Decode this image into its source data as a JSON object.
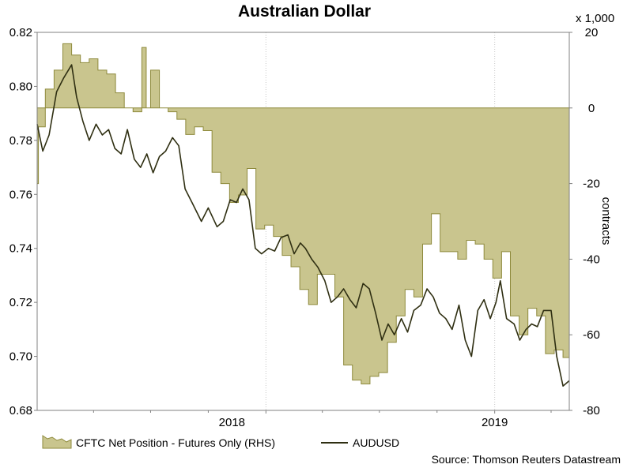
{
  "chart_data": {
    "type": "line",
    "title": "Australian Dollar",
    "ylabel": "",
    "y2label": "contracts",
    "y2_multiplier_label": "x 1,000",
    "ylim": [
      0.68,
      0.82
    ],
    "y2lim": [
      -80,
      20
    ],
    "yticks": [
      "0.82",
      "0.80",
      "0.78",
      "0.76",
      "0.74",
      "0.72",
      "0.70",
      "0.68"
    ],
    "y2ticks": [
      "20",
      "0",
      "-20",
      "-40",
      "-60",
      "-80"
    ],
    "xlim": [
      "2017-01-01",
      "2019-04-30"
    ],
    "xtick_labels": [
      {
        "label": "2018",
        "date": "2018-01-01"
      },
      {
        "label": "2019",
        "date": "2019-01-01"
      }
    ],
    "legend_position": "bottom-left",
    "source": "Source: Thomson Reuters Datastream",
    "colors": {
      "area_fill": "#c9c58e",
      "area_stroke": "#8e8a3c",
      "line": "#2f2f12",
      "grid": "#c8c8c8"
    },
    "series": [
      {
        "name": "CFTC Net Position - Futures Only (RHS)",
        "type": "area",
        "axis": "right",
        "units": "thousand contracts",
        "x": [
          "2017-01-01",
          "2017-01-03",
          "2017-01-14",
          "2017-01-28",
          "2017-02-11",
          "2017-02-25",
          "2017-03-11",
          "2017-03-25",
          "2017-04-08",
          "2017-04-22",
          "2017-05-06",
          "2017-05-20",
          "2017-06-03",
          "2017-06-17",
          "2017-06-24",
          "2017-07-01",
          "2017-07-15",
          "2017-07-29",
          "2017-08-12",
          "2017-08-26",
          "2017-09-09",
          "2017-09-23",
          "2017-10-07",
          "2017-10-21",
          "2017-11-04",
          "2017-11-18",
          "2017-12-02",
          "2017-12-16",
          "2017-12-30",
          "2018-01-13",
          "2018-01-27",
          "2018-02-10",
          "2018-02-24",
          "2018-03-10",
          "2018-03-24",
          "2018-04-07",
          "2018-04-21",
          "2018-05-05",
          "2018-05-19",
          "2018-06-02",
          "2018-06-16",
          "2018-06-30",
          "2018-07-14",
          "2018-07-28",
          "2018-08-11",
          "2018-08-25",
          "2018-09-08",
          "2018-09-22",
          "2018-10-06",
          "2018-10-20",
          "2018-11-03",
          "2018-11-17",
          "2018-12-01",
          "2018-12-15",
          "2018-12-29",
          "2019-01-12",
          "2019-01-26",
          "2019-02-09",
          "2019-02-23",
          "2019-03-09",
          "2019-03-23",
          "2019-04-06",
          "2019-04-20",
          "2019-04-30"
        ],
        "values": [
          -20,
          -5,
          5,
          10,
          17,
          14,
          12,
          13,
          10,
          9,
          4,
          0,
          -1,
          16,
          0,
          10,
          0,
          -1,
          -3,
          -7,
          -5,
          -6,
          -17,
          -20,
          -25,
          -23,
          -16,
          -32,
          -31,
          -34,
          -39,
          -42,
          -48,
          -52,
          -44,
          -44,
          -50,
          -68,
          -72,
          -73,
          -71,
          -70,
          -62,
          -55,
          -48,
          -50,
          -36,
          -28,
          -38,
          -38,
          -40,
          -35,
          -36,
          -40,
          -45,
          -38,
          -55,
          -60,
          -53,
          -55,
          -65,
          -64,
          -66,
          -68
        ]
      },
      {
        "name": "AUDUSD",
        "type": "line",
        "axis": "left",
        "x": [
          "2017-01-01",
          "2017-01-10",
          "2017-01-20",
          "2017-02-01",
          "2017-02-12",
          "2017-02-25",
          "2017-03-05",
          "2017-03-15",
          "2017-03-25",
          "2017-04-05",
          "2017-04-15",
          "2017-04-25",
          "2017-05-05",
          "2017-05-15",
          "2017-05-25",
          "2017-06-05",
          "2017-06-15",
          "2017-06-25",
          "2017-07-05",
          "2017-07-15",
          "2017-07-25",
          "2017-08-05",
          "2017-08-15",
          "2017-08-25",
          "2017-09-05",
          "2017-09-20",
          "2017-10-01",
          "2017-10-15",
          "2017-10-25",
          "2017-11-05",
          "2017-11-15",
          "2017-11-25",
          "2017-12-05",
          "2017-12-15",
          "2017-12-25",
          "2018-01-05",
          "2018-01-15",
          "2018-01-25",
          "2018-02-05",
          "2018-02-15",
          "2018-02-25",
          "2018-03-05",
          "2018-03-15",
          "2018-03-25",
          "2018-04-05",
          "2018-04-15",
          "2018-04-25",
          "2018-05-05",
          "2018-05-15",
          "2018-05-25",
          "2018-06-05",
          "2018-06-15",
          "2018-06-25",
          "2018-07-05",
          "2018-07-15",
          "2018-07-25",
          "2018-08-05",
          "2018-08-15",
          "2018-08-25",
          "2018-09-05",
          "2018-09-15",
          "2018-09-25",
          "2018-10-05",
          "2018-10-15",
          "2018-10-25",
          "2018-11-05",
          "2018-11-15",
          "2018-11-25",
          "2018-12-05",
          "2018-12-15",
          "2018-12-25",
          "2019-01-03",
          "2019-01-10",
          "2019-01-20",
          "2019-02-01",
          "2019-02-10",
          "2019-02-20",
          "2019-03-01",
          "2019-03-10",
          "2019-03-20",
          "2019-04-01",
          "2019-04-10",
          "2019-04-20",
          "2019-04-30"
        ],
        "values": [
          0.786,
          0.776,
          0.782,
          0.798,
          0.803,
          0.808,
          0.796,
          0.787,
          0.78,
          0.786,
          0.782,
          0.784,
          0.777,
          0.775,
          0.784,
          0.773,
          0.77,
          0.775,
          0.768,
          0.774,
          0.776,
          0.781,
          0.778,
          0.762,
          0.757,
          0.75,
          0.755,
          0.748,
          0.75,
          0.758,
          0.757,
          0.762,
          0.758,
          0.74,
          0.738,
          0.74,
          0.739,
          0.744,
          0.745,
          0.738,
          0.742,
          0.74,
          0.736,
          0.733,
          0.728,
          0.72,
          0.722,
          0.725,
          0.721,
          0.718,
          0.727,
          0.725,
          0.716,
          0.706,
          0.712,
          0.708,
          0.714,
          0.709,
          0.717,
          0.719,
          0.725,
          0.722,
          0.716,
          0.714,
          0.71,
          0.719,
          0.706,
          0.7,
          0.717,
          0.721,
          0.714,
          0.72,
          0.728,
          0.714,
          0.712,
          0.706,
          0.71,
          0.712,
          0.711,
          0.717,
          0.717,
          0.7,
          0.689,
          0.691
        ]
      }
    ]
  }
}
